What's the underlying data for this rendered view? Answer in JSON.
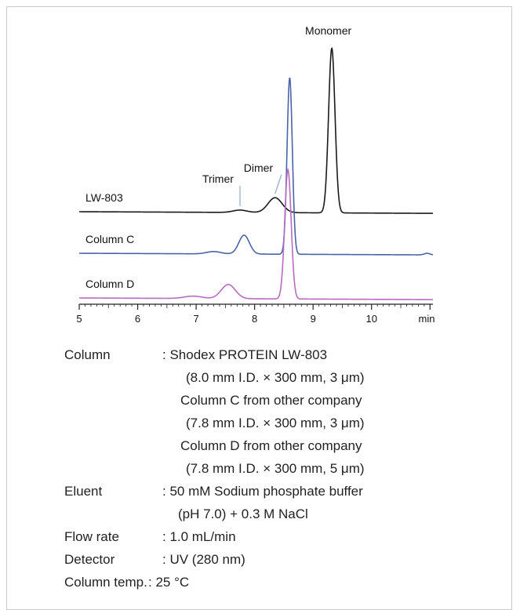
{
  "chart_data": {
    "type": "line",
    "xlim": [
      5,
      11.05
    ],
    "x_ticks": [
      "5",
      "6",
      "7",
      "8",
      "9",
      "10"
    ],
    "x_unit_label": "min",
    "series": [
      {
        "name": "LW-803",
        "color": "#1a1a1a",
        "peaks": [
          {
            "x": 7.75,
            "h": 0.03,
            "w": 0.12
          },
          {
            "x": 8.35,
            "h": 0.19,
            "w": 0.12
          },
          {
            "x": 9.32,
            "h": 2.1,
            "w": 0.055
          }
        ],
        "annotations": [
          {
            "label": "Trimer",
            "x": 7.75
          },
          {
            "label": "Dimer",
            "x": 8.35
          },
          {
            "label": "Monomer",
            "x": 9.32
          }
        ]
      },
      {
        "name": "Column C",
        "color": "#4b63a8",
        "peaks": [
          {
            "x": 7.3,
            "h": 0.03,
            "w": 0.12
          },
          {
            "x": 7.82,
            "h": 0.24,
            "w": 0.09
          },
          {
            "x": 8.6,
            "h": 2.25,
            "w": 0.045
          },
          {
            "x": 10.95,
            "h": 0.02,
            "w": 0.05
          }
        ]
      },
      {
        "name": "Column D",
        "color": "#b86bc0",
        "peaks": [
          {
            "x": 6.95,
            "h": 0.03,
            "w": 0.15
          },
          {
            "x": 7.55,
            "h": 0.18,
            "w": 0.12
          },
          {
            "x": 8.57,
            "h": 1.65,
            "w": 0.055
          }
        ]
      }
    ]
  },
  "conditions": {
    "column_label": "Column",
    "column_value_1": ":  Shodex PROTEIN LW-803",
    "column_value_2": "(8.0 mm I.D. × 300 mm, 3 μm)",
    "column_value_3": "Column C from other company",
    "column_value_4": "(7.8 mm I.D. × 300 mm, 3 μm)",
    "column_value_5": "Column D from other company",
    "column_value_6": "(7.8 mm I.D. × 300 mm, 5 μm)",
    "eluent_label": "Eluent",
    "eluent_value_1": ": 50 mM Sodium phosphate buffer",
    "eluent_value_2": "(pH 7.0) + 0.3 M NaCl",
    "flow_label": "Flow rate",
    "flow_value": ": 1.0 mL/min",
    "detector_label": "Detector",
    "detector_value": ": UV (280 nm)",
    "temp_label": "Column temp.",
    "temp_value": ": 25 °C"
  }
}
